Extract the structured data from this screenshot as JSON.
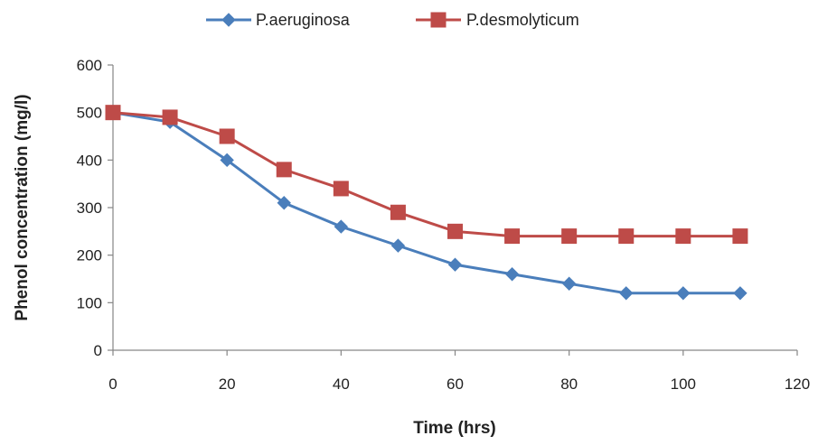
{
  "chart_data": {
    "type": "line",
    "xlabel": "Time (hrs)",
    "ylabel": "Phenol concentration (mg/l)",
    "xlim": [
      0,
      120
    ],
    "ylim": [
      0,
      600
    ],
    "xticks": [
      0,
      20,
      40,
      60,
      80,
      100,
      120
    ],
    "yticks": [
      0,
      100,
      200,
      300,
      400,
      500,
      600
    ],
    "grid": false,
    "legend_position": "top",
    "series": [
      {
        "name": "P.aeruginosa",
        "color": "#4a7ebb",
        "marker": "diamond",
        "x": [
          0,
          10,
          20,
          30,
          40,
          50,
          60,
          70,
          80,
          90,
          100,
          110
        ],
        "y": [
          500,
          480,
          400,
          310,
          260,
          220,
          180,
          160,
          140,
          120,
          120,
          120
        ]
      },
      {
        "name": "P.desmolyticum",
        "color": "#be4b48",
        "marker": "square",
        "x": [
          0,
          10,
          20,
          30,
          40,
          50,
          60,
          70,
          80,
          90,
          100,
          110
        ],
        "y": [
          500,
          490,
          450,
          380,
          340,
          290,
          250,
          240,
          240,
          240,
          240,
          240
        ]
      }
    ]
  }
}
